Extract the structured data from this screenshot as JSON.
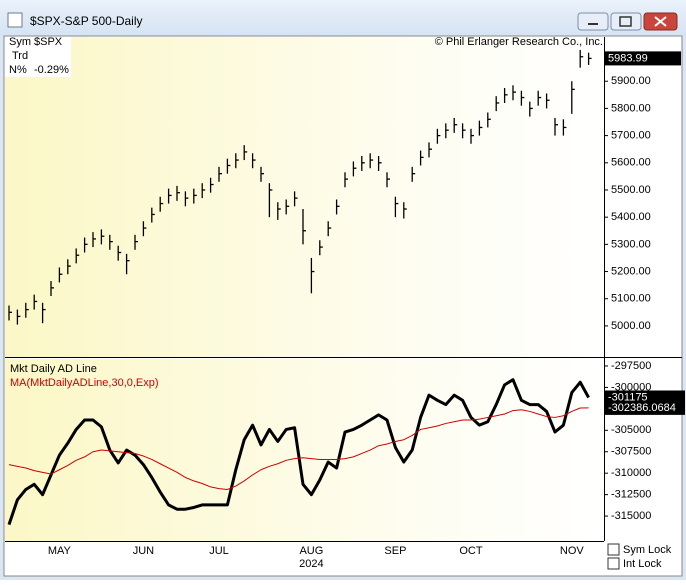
{
  "window": {
    "title": "$SPX-S&P 500-Daily"
  },
  "info": {
    "sym_label": "Sym",
    "sym": "$SPX",
    "trd_label": "Trd",
    "n_label": "N%",
    "n": "-0.29%"
  },
  "copyright": "© Phil Erlanger Research Co., Inc.",
  "checkboxes": [
    "Sym Lock",
    "Int Lock"
  ],
  "chart_data": [
    {
      "type": "ohlc",
      "color": "#000000",
      "high": [
        5075,
        5060,
        5085,
        5115,
        5085,
        5165,
        5215,
        5245,
        5285,
        5325,
        5345,
        5355,
        5335,
        5295,
        5265,
        5335,
        5385,
        5435,
        5475,
        5505,
        5515,
        5495,
        5505,
        5525,
        5545,
        5585,
        5615,
        5635,
        5665,
        5635,
        5585,
        5525,
        5455,
        5465,
        5495,
        5430,
        5250,
        5315,
        5385,
        5465,
        5565,
        5605,
        5625,
        5635,
        5625,
        5565,
        5475,
        5455,
        5585,
        5645,
        5675,
        5725,
        5745,
        5765,
        5745,
        5725,
        5755,
        5785,
        5845,
        5875,
        5885,
        5865,
        5825,
        5865,
        5855,
        5765,
        5760,
        5900,
        6015,
        6005
      ],
      "low": [
        5020,
        5005,
        5030,
        5060,
        5010,
        5110,
        5160,
        5190,
        5230,
        5270,
        5290,
        5300,
        5280,
        5240,
        5190,
        5280,
        5330,
        5380,
        5420,
        5450,
        5460,
        5440,
        5450,
        5470,
        5490,
        5530,
        5560,
        5580,
        5610,
        5580,
        5530,
        5400,
        5390,
        5410,
        5440,
        5300,
        5120,
        5260,
        5330,
        5410,
        5510,
        5550,
        5570,
        5580,
        5570,
        5510,
        5400,
        5395,
        5530,
        5590,
        5620,
        5670,
        5690,
        5710,
        5690,
        5670,
        5700,
        5730,
        5790,
        5820,
        5830,
        5810,
        5770,
        5810,
        5800,
        5700,
        5700,
        5780,
        5950,
        5960
      ],
      "close": [
        5050,
        5035,
        5060,
        5090,
        5060,
        5140,
        5190,
        5220,
        5260,
        5300,
        5320,
        5330,
        5310,
        5270,
        5240,
        5310,
        5360,
        5410,
        5450,
        5480,
        5490,
        5470,
        5480,
        5500,
        5520,
        5560,
        5590,
        5610,
        5640,
        5610,
        5560,
        5500,
        5430,
        5440,
        5470,
        5350,
        5200,
        5290,
        5360,
        5440,
        5540,
        5580,
        5600,
        5610,
        5600,
        5540,
        5450,
        5430,
        5560,
        5620,
        5650,
        5700,
        5720,
        5740,
        5720,
        5700,
        5730,
        5760,
        5820,
        5850,
        5860,
        5840,
        5800,
        5840,
        5830,
        5740,
        5730,
        5870,
        5990,
        5983.99
      ],
      "ylim": [
        4893,
        6059
      ],
      "yticks": [
        {
          "value": 5000,
          "label": "5000.00"
        },
        {
          "value": 5100,
          "label": "5100.00"
        },
        {
          "value": 5200,
          "label": "5200.00"
        },
        {
          "value": 5300,
          "label": "5300.00"
        },
        {
          "value": 5400,
          "label": "5400.00"
        },
        {
          "value": 5500,
          "label": "5500.00"
        },
        {
          "value": 5600,
          "label": "5600.00"
        },
        {
          "value": 5700,
          "label": "5700.00"
        },
        {
          "value": 5800,
          "label": "5800.00"
        },
        {
          "value": 5900,
          "label": "5900.00"
        }
      ]
    },
    {
      "type": "line",
      "categories": [
        null,
        null,
        null,
        null,
        null,
        null,
        "MAY",
        null,
        null,
        null,
        null,
        null,
        null,
        null,
        null,
        null,
        "JUN",
        null,
        null,
        null,
        null,
        null,
        null,
        null,
        null,
        "JUL",
        null,
        null,
        null,
        null,
        null,
        null,
        null,
        null,
        null,
        null,
        "AUG",
        null,
        null,
        null,
        null,
        null,
        null,
        null,
        null,
        null,
        "SEP",
        null,
        null,
        null,
        null,
        null,
        null,
        null,
        null,
        "OCT",
        null,
        null,
        null,
        null,
        null,
        null,
        null,
        null,
        null,
        null,
        null,
        "NOV",
        null,
        null
      ],
      "year_label": "2024",
      "series": [
        {
          "name": "Mkt Daily AD Line",
          "color": "#000000",
          "values": [
            -316000,
            -313100,
            -311900,
            -311300,
            -312500,
            -310200,
            -307900,
            -306500,
            -304900,
            -303800,
            -303800,
            -304600,
            -307300,
            -308800,
            -307300,
            -307900,
            -309000,
            -310500,
            -312200,
            -313700,
            -314200,
            -314200,
            -314000,
            -313700,
            -313700,
            -313700,
            -313700,
            -309600,
            -306100,
            -304400,
            -306700,
            -304900,
            -306300,
            -304900,
            -304700,
            -311300,
            -312500,
            -310800,
            -308700,
            -309400,
            -305200,
            -304900,
            -304400,
            -303800,
            -303200,
            -303800,
            -307000,
            -308700,
            -307300,
            -303500,
            -300900,
            -301500,
            -302000,
            -300900,
            -301500,
            -303500,
            -304400,
            -304000,
            -302000,
            -299700,
            -299100,
            -301500,
            -302000,
            -302000,
            -302800,
            -305200,
            -304400,
            -300600,
            -299400,
            -301175
          ]
        },
        {
          "name": "MA(MktDailyADLine,30,0,Exp)",
          "color": "#d00000",
          "values": [
            -309000,
            -309200,
            -309400,
            -309700,
            -309900,
            -310100,
            -309600,
            -309100,
            -308500,
            -308100,
            -307500,
            -307300,
            -307400,
            -307500,
            -307600,
            -307700,
            -308000,
            -308400,
            -308900,
            -309400,
            -309900,
            -310500,
            -310900,
            -311200,
            -311600,
            -311800,
            -311900,
            -311500,
            -310900,
            -310200,
            -309600,
            -309200,
            -308900,
            -308500,
            -308300,
            -308200,
            -308300,
            -308400,
            -308400,
            -308400,
            -308300,
            -308100,
            -307700,
            -307300,
            -306800,
            -306600,
            -306300,
            -306100,
            -305600,
            -304900,
            -304700,
            -304500,
            -304200,
            -304000,
            -303800,
            -303800,
            -303700,
            -303500,
            -303300,
            -303100,
            -302700,
            -302600,
            -302800,
            -303100,
            -303400,
            -303500,
            -303300,
            -302800,
            -302400,
            -302386.0684
          ]
        }
      ],
      "ylim": [
        -317790,
        -296570
      ],
      "yticks": [
        -297500,
        -300000,
        -305000,
        -307500,
        -310000,
        -312500,
        -315000
      ]
    }
  ]
}
